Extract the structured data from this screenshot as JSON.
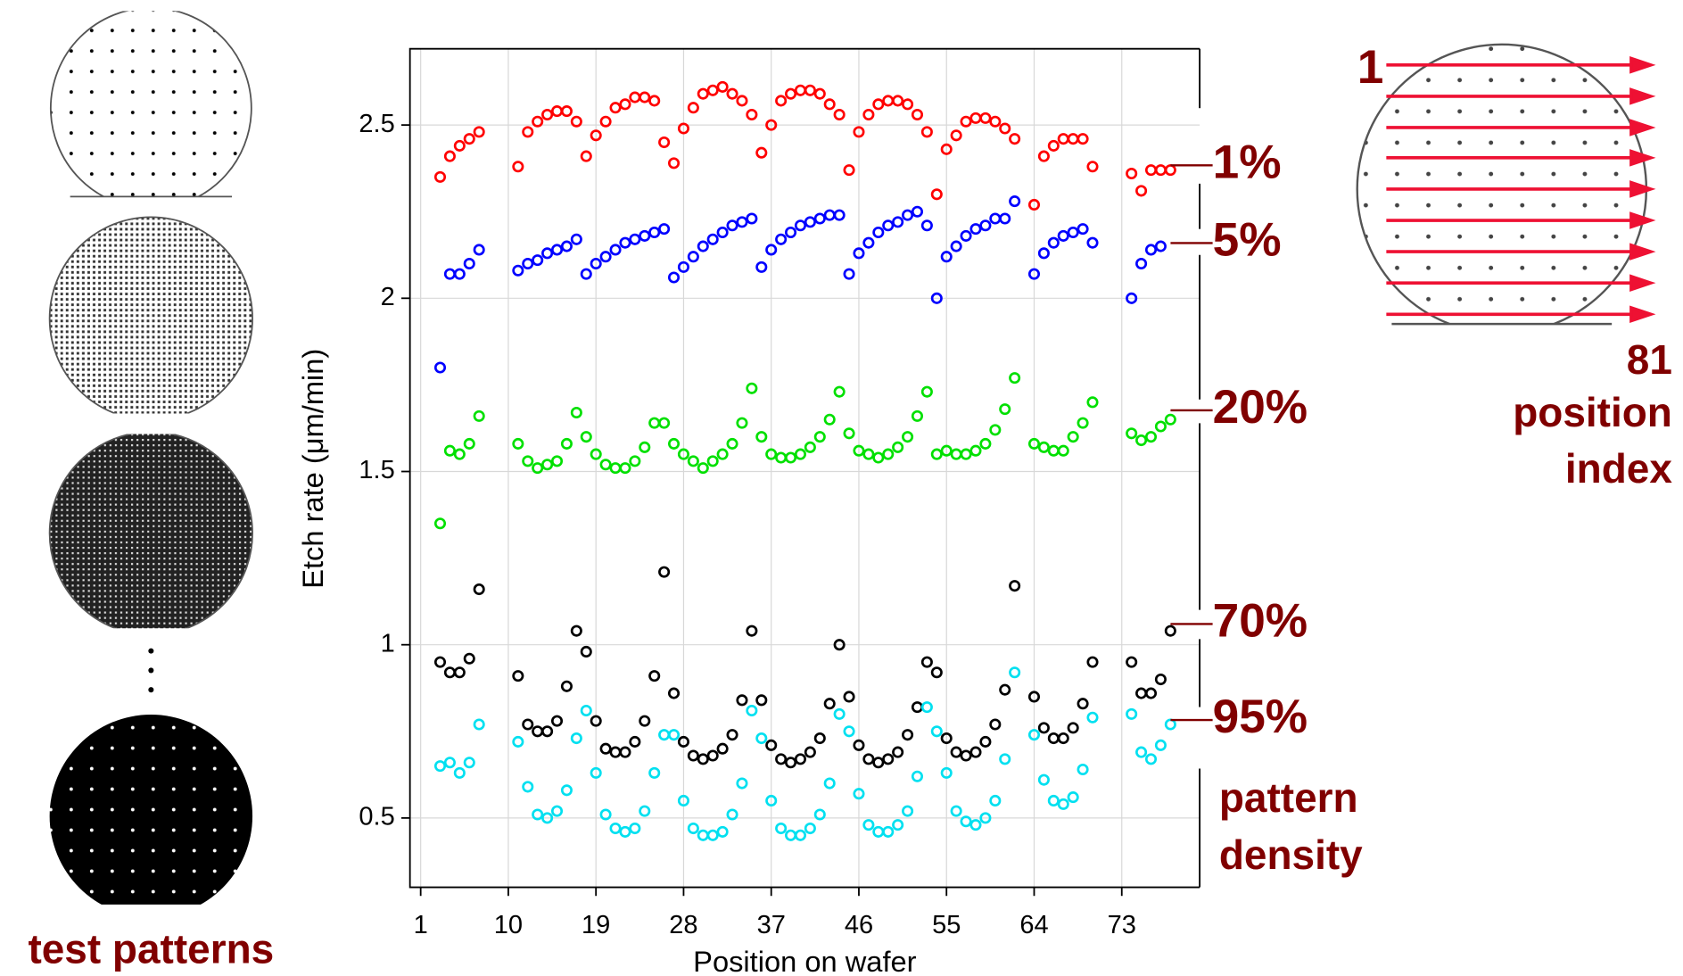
{
  "chart_data": {
    "type": "scatter",
    "xlabel": "Position on wafer",
    "ylabel": "Etch rate (μm/min)",
    "xlim": [
      -0.1,
      81
    ],
    "ylim": [
      0.3,
      2.72
    ],
    "xticks": [
      1,
      10,
      19,
      28,
      37,
      46,
      55,
      64,
      73
    ],
    "yticks": [
      0.5,
      1,
      1.5,
      2,
      2.5
    ],
    "grid": true,
    "x": [
      1,
      2,
      3,
      4,
      5,
      6,
      7,
      8,
      9,
      10,
      11,
      12,
      13,
      14,
      15,
      16,
      17,
      18,
      19,
      20,
      21,
      22,
      23,
      24,
      25,
      26,
      27,
      28,
      29,
      30,
      31,
      32,
      33,
      34,
      35,
      36,
      37,
      38,
      39,
      40,
      41,
      42,
      43,
      44,
      45,
      46,
      47,
      48,
      49,
      50,
      51,
      52,
      53,
      54,
      55,
      56,
      57,
      58,
      59,
      60,
      61,
      62,
      63,
      64,
      65,
      66,
      67,
      68,
      69,
      70,
      71,
      72,
      73,
      74,
      75,
      76,
      77,
      78,
      79,
      80,
      81
    ],
    "series": [
      {
        "name": "1%",
        "color": "#ff0000",
        "values": [
          null,
          null,
          2.35,
          2.41,
          2.44,
          2.46,
          2.48,
          null,
          null,
          null,
          2.38,
          2.48,
          2.51,
          2.53,
          2.54,
          2.54,
          2.51,
          2.41,
          2.47,
          2.51,
          2.55,
          2.56,
          2.58,
          2.58,
          2.57,
          2.45,
          2.39,
          2.49,
          2.55,
          2.59,
          2.6,
          2.61,
          2.59,
          2.57,
          2.53,
          2.42,
          2.5,
          2.57,
          2.59,
          2.6,
          2.6,
          2.59,
          2.56,
          2.53,
          2.37,
          2.48,
          2.53,
          2.56,
          2.57,
          2.57,
          2.56,
          2.53,
          2.48,
          2.3,
          2.43,
          2.47,
          2.51,
          2.52,
          2.52,
          2.51,
          2.49,
          2.46,
          null,
          2.27,
          2.41,
          2.44,
          2.46,
          2.46,
          2.46,
          2.38,
          null,
          null,
          null,
          2.36,
          2.31,
          2.37,
          2.37,
          2.37,
          null,
          null,
          null
        ]
      },
      {
        "name": "5%",
        "color": "#0000ff",
        "values": [
          null,
          null,
          1.8,
          2.07,
          2.07,
          2.1,
          2.14,
          null,
          null,
          null,
          2.08,
          2.1,
          2.11,
          2.13,
          2.14,
          2.15,
          2.17,
          2.07,
          2.1,
          2.12,
          2.14,
          2.16,
          2.17,
          2.18,
          2.19,
          2.2,
          2.06,
          2.09,
          2.12,
          2.15,
          2.17,
          2.19,
          2.21,
          2.22,
          2.23,
          2.09,
          2.14,
          2.17,
          2.19,
          2.21,
          2.22,
          2.23,
          2.24,
          2.24,
          2.07,
          2.13,
          2.16,
          2.19,
          2.21,
          2.22,
          2.24,
          2.25,
          2.21,
          2.0,
          2.12,
          2.15,
          2.18,
          2.2,
          2.21,
          2.23,
          2.23,
          2.28,
          null,
          2.07,
          2.13,
          2.16,
          2.18,
          2.19,
          2.2,
          2.16,
          null,
          null,
          null,
          2.0,
          2.1,
          2.14,
          2.15,
          null,
          null,
          null,
          null
        ]
      },
      {
        "name": "20%",
        "color": "#00e000",
        "values": [
          null,
          null,
          1.35,
          1.56,
          1.55,
          1.58,
          1.66,
          null,
          null,
          null,
          1.58,
          1.53,
          1.51,
          1.52,
          1.53,
          1.58,
          1.67,
          1.6,
          1.55,
          1.52,
          1.51,
          1.51,
          1.53,
          1.57,
          1.64,
          1.64,
          1.58,
          1.55,
          1.53,
          1.51,
          1.53,
          1.55,
          1.58,
          1.64,
          1.74,
          1.6,
          1.55,
          1.54,
          1.54,
          1.55,
          1.57,
          1.6,
          1.65,
          1.73,
          1.61,
          1.56,
          1.55,
          1.54,
          1.55,
          1.57,
          1.6,
          1.66,
          1.73,
          1.55,
          1.56,
          1.55,
          1.55,
          1.56,
          1.58,
          1.62,
          1.68,
          1.77,
          null,
          1.58,
          1.57,
          1.56,
          1.56,
          1.6,
          1.64,
          1.7,
          null,
          null,
          null,
          1.61,
          1.59,
          1.6,
          1.63,
          1.65,
          null,
          null,
          null
        ]
      },
      {
        "name": "70%",
        "color": "#000000",
        "values": [
          null,
          null,
          0.95,
          0.92,
          0.92,
          0.96,
          1.16,
          null,
          null,
          null,
          0.91,
          0.77,
          0.75,
          0.75,
          0.78,
          0.88,
          1.04,
          0.98,
          0.78,
          0.7,
          0.69,
          0.69,
          0.72,
          0.78,
          0.91,
          1.21,
          0.86,
          0.72,
          0.68,
          0.67,
          0.68,
          0.7,
          0.74,
          0.84,
          1.04,
          0.84,
          0.71,
          0.67,
          0.66,
          0.67,
          0.69,
          0.73,
          0.83,
          1.0,
          0.85,
          0.71,
          0.67,
          0.66,
          0.67,
          0.69,
          0.74,
          0.82,
          0.95,
          0.92,
          0.73,
          0.69,
          0.68,
          0.69,
          0.72,
          0.77,
          0.87,
          1.17,
          null,
          0.85,
          0.76,
          0.73,
          0.73,
          0.76,
          0.83,
          0.95,
          null,
          null,
          null,
          0.95,
          0.86,
          0.86,
          0.9,
          1.04,
          null,
          null,
          null
        ]
      },
      {
        "name": "95%",
        "color": "#00e0f0",
        "values": [
          null,
          null,
          0.65,
          0.66,
          0.63,
          0.66,
          0.77,
          null,
          null,
          null,
          0.72,
          0.59,
          0.51,
          0.5,
          0.52,
          0.58,
          0.73,
          0.81,
          0.63,
          0.51,
          0.47,
          0.46,
          0.47,
          0.52,
          0.63,
          0.74,
          0.74,
          0.55,
          0.47,
          0.45,
          0.45,
          0.46,
          0.51,
          0.6,
          0.81,
          0.73,
          0.55,
          0.47,
          0.45,
          0.45,
          0.47,
          0.51,
          0.6,
          0.8,
          0.75,
          0.57,
          0.48,
          0.46,
          0.46,
          0.48,
          0.52,
          0.62,
          0.82,
          0.75,
          0.63,
          0.52,
          0.49,
          0.48,
          0.5,
          0.55,
          0.67,
          0.92,
          null,
          0.74,
          0.61,
          0.55,
          0.54,
          0.56,
          0.64,
          0.79,
          null,
          null,
          null,
          0.8,
          0.69,
          0.67,
          0.71,
          0.77,
          null,
          null,
          null
        ]
      }
    ],
    "annotations": [
      "pattern",
      "density",
      "test patterns",
      "1",
      "81",
      "position",
      "index"
    ]
  }
}
